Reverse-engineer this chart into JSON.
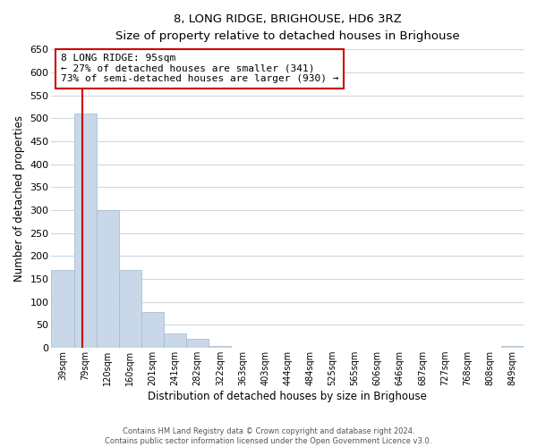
{
  "title": "8, LONG RIDGE, BRIGHOUSE, HD6 3RZ",
  "subtitle": "Size of property relative to detached houses in Brighouse",
  "xlabel": "Distribution of detached houses by size in Brighouse",
  "ylabel": "Number of detached properties",
  "bar_labels": [
    "39sqm",
    "79sqm",
    "120sqm",
    "160sqm",
    "201sqm",
    "241sqm",
    "282sqm",
    "322sqm",
    "363sqm",
    "403sqm",
    "444sqm",
    "484sqm",
    "525sqm",
    "565sqm",
    "606sqm",
    "646sqm",
    "687sqm",
    "727sqm",
    "768sqm",
    "808sqm",
    "849sqm"
  ],
  "bar_values": [
    170,
    510,
    300,
    170,
    78,
    32,
    20,
    5,
    1,
    0,
    0,
    0,
    0,
    0,
    0,
    0,
    0,
    0,
    0,
    0,
    5
  ],
  "bar_color": "#c8d8e8",
  "bar_edge_color": "#a0b8cc",
  "annotation_text_line1": "8 LONG RIDGE: 95sqm",
  "annotation_text_line2": "← 27% of detached houses are smaller (341)",
  "annotation_text_line3": "73% of semi-detached houses are larger (930) →",
  "red_line_color": "#cc0000",
  "annotation_box_edge": "#cc0000",
  "ylim": [
    0,
    650
  ],
  "yticks": [
    0,
    50,
    100,
    150,
    200,
    250,
    300,
    350,
    400,
    450,
    500,
    550,
    600,
    650
  ],
  "footer_line1": "Contains HM Land Registry data © Crown copyright and database right 2024.",
  "footer_line2": "Contains public sector information licensed under the Open Government Licence v3.0.",
  "bg_color": "#ffffff",
  "grid_color": "#d0d8e0"
}
